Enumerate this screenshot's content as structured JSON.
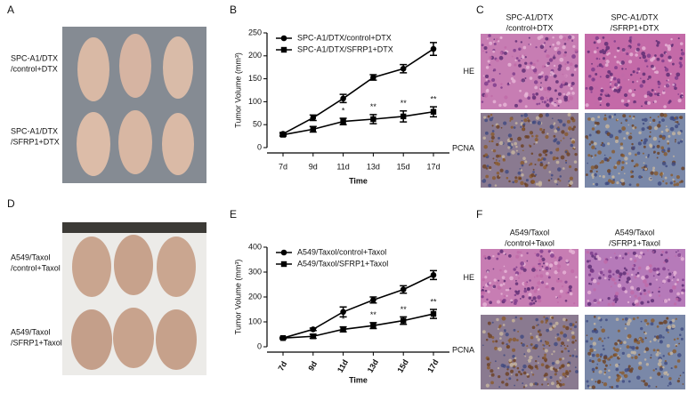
{
  "panels": {
    "A": {
      "letter": "A",
      "labels": [
        [
          "SPC-A1/DTX",
          "/control+DTX"
        ],
        [
          "SPC-A1/DTX",
          "/SFRP1+DTX"
        ]
      ]
    },
    "B": {
      "letter": "B"
    },
    "C": {
      "letter": "C",
      "columns": [
        [
          "SPC-A1/DTX",
          "/control+DTX"
        ],
        [
          "SPC-A1/DTX",
          "/SFRP1+DTX"
        ]
      ],
      "rows": [
        "HE",
        "PCNA"
      ]
    },
    "D": {
      "letter": "D",
      "labels": [
        [
          "A549/Taxol",
          "/control+Taxol"
        ],
        [
          "A549/Taxol",
          "/SFRP1+Taxol"
        ]
      ]
    },
    "E": {
      "letter": "E"
    },
    "F": {
      "letter": "F",
      "columns": [
        [
          "A549/Taxol",
          "/control+Taxol"
        ],
        [
          "A549/Taxol",
          "/SFRP1+Taxol"
        ]
      ],
      "rows": [
        "HE",
        "PCNA"
      ]
    }
  },
  "chart_data": [
    {
      "type": "line",
      "x_label": "Time",
      "y_label": "Tumor Volume (mm³)",
      "categories": [
        "7d",
        "9d",
        "11d",
        "13d",
        "15d",
        "17d"
      ],
      "ylim": [
        0,
        250
      ],
      "yticks": [
        0,
        50,
        100,
        150,
        200,
        250
      ],
      "legend": "upper left",
      "series": [
        {
          "name": "SPC-A1/DTX/control+DTX",
          "color": "#000000",
          "marker": "circle",
          "values": [
            30,
            65,
            107,
            153,
            172,
            215
          ],
          "errors": [
            3,
            6,
            9,
            6,
            9,
            14
          ]
        },
        {
          "name": "SPC-A1/DTX/SFRP1+DTX",
          "color": "#000000",
          "marker": "square",
          "values": [
            28,
            40,
            57,
            62,
            68,
            78
          ],
          "errors": [
            3,
            6,
            7,
            10,
            12,
            11
          ]
        }
      ],
      "significance": [
        null,
        null,
        "*",
        "**",
        "**",
        "**"
      ]
    },
    {
      "type": "line",
      "x_label": "Time",
      "y_label": "Tumor Volume (mm³)",
      "categories": [
        "7d",
        "9d",
        "11d",
        "13d",
        "15d",
        "17d"
      ],
      "ylim": [
        0,
        400
      ],
      "yticks": [
        0,
        100,
        200,
        300,
        400
      ],
      "legend": "upper left",
      "series": [
        {
          "name": "A549/Taxol/control+Taxol",
          "color": "#000000",
          "marker": "circle",
          "values": [
            35,
            70,
            140,
            188,
            230,
            288
          ],
          "errors": [
            3,
            5,
            20,
            12,
            15,
            18
          ]
        },
        {
          "name": "A549/Taxol/SFRP1+Taxol",
          "color": "#000000",
          "marker": "square",
          "values": [
            35,
            42,
            70,
            85,
            105,
            132
          ],
          "errors": [
            3,
            8,
            10,
            12,
            15,
            18
          ]
        }
      ],
      "significance": [
        null,
        null,
        "*",
        "**",
        "**",
        "**"
      ]
    }
  ]
}
